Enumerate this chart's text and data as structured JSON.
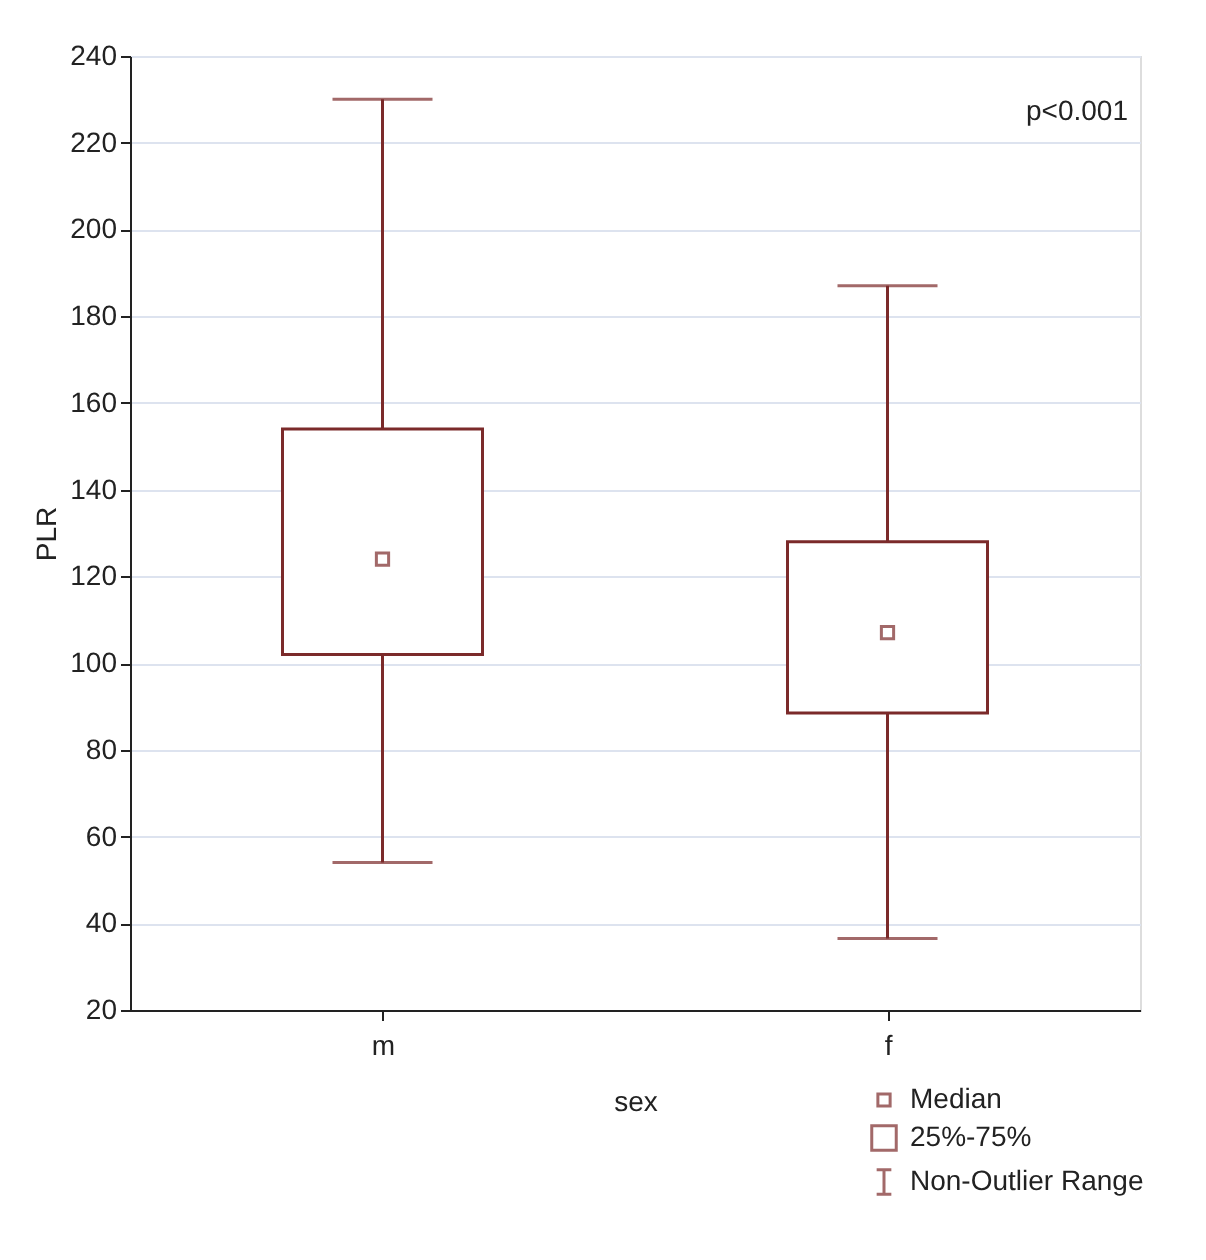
{
  "chart_data": {
    "type": "box",
    "xlabel": "sex",
    "ylabel": "PLR",
    "categories": [
      "m",
      "f"
    ],
    "series": [
      {
        "color": "#7b2a2a",
        "boxes": [
          {
            "low": 54,
            "q1": 102,
            "median": 124,
            "q3": 154,
            "high": 230
          },
          {
            "low": 36.5,
            "q1": 88.5,
            "median": 107,
            "q3": 128,
            "high": 187
          }
        ]
      }
    ],
    "ylim": [
      20,
      240
    ],
    "yticks": [
      20,
      40,
      60,
      80,
      100,
      120,
      140,
      160,
      180,
      200,
      220,
      240
    ],
    "grid": "y",
    "annotations": [
      "p<0.001",
      "Median",
      "25%-75%",
      "Non-Outlier Range"
    ]
  }
}
